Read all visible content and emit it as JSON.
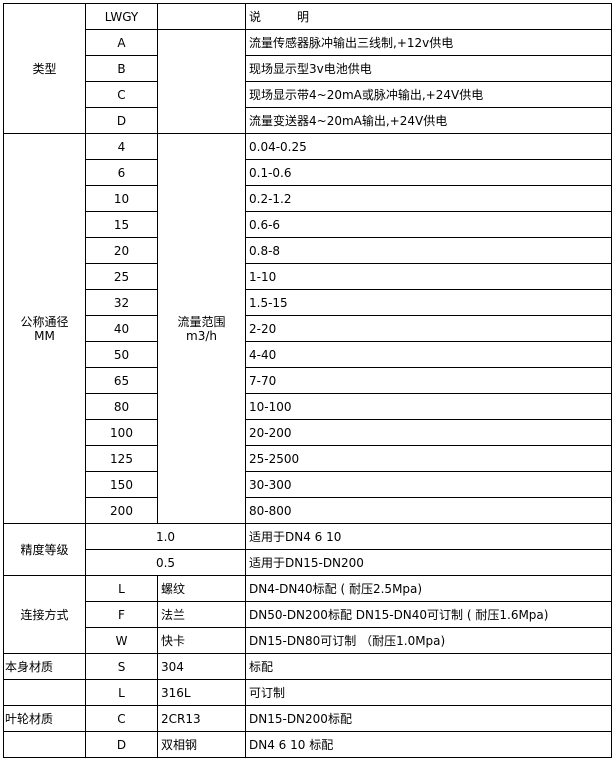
{
  "type_section": {
    "label": "类型",
    "model": "LWGY",
    "desc_header": "说　　　明",
    "rows": [
      {
        "code": "A",
        "desc": "流量传感器脉冲输出三线制,+12v供电"
      },
      {
        "code": "B",
        "desc": "现场显示型3v电池供电"
      },
      {
        "code": "C",
        "desc": "现场显示带4~20mA或脉冲输出,+24V供电"
      },
      {
        "code": "D",
        "desc": "流量变送器4~20mA输出,+24V供电"
      }
    ]
  },
  "diameter_section": {
    "label": "公称通径",
    "unit": "MM",
    "range_label": "流量范围",
    "range_unit": "m3/h",
    "rows": [
      {
        "dn": "4",
        "range": "0.04-0.25"
      },
      {
        "dn": "6",
        "range": "0.1-0.6"
      },
      {
        "dn": "10",
        "range": "0.2-1.2"
      },
      {
        "dn": "15",
        "range": "0.6-6"
      },
      {
        "dn": "20",
        "range": "0.8-8"
      },
      {
        "dn": "25",
        "range": "1-10"
      },
      {
        "dn": "32",
        "range": "1.5-15"
      },
      {
        "dn": "40",
        "range": "2-20"
      },
      {
        "dn": "50",
        "range": "4-40"
      },
      {
        "dn": "65",
        "range": "7-70"
      },
      {
        "dn": "80",
        "range": "10-100"
      },
      {
        "dn": "100",
        "range": "20-200"
      },
      {
        "dn": "125",
        "range": "25-2500"
      },
      {
        "dn": "150",
        "range": "30-300"
      },
      {
        "dn": "200",
        "range": "80-800"
      }
    ]
  },
  "accuracy_section": {
    "label": "精度等级",
    "rows": [
      {
        "grade": "1.0",
        "desc": "适用于DN4  6  10"
      },
      {
        "grade": "0.5",
        "desc": "适用于DN15-DN200"
      }
    ]
  },
  "connection_section": {
    "label": "连接方式",
    "rows": [
      {
        "code": "L",
        "name": "螺纹",
        "desc": "DN4-DN40标配 ( 耐压2.5Mpa)"
      },
      {
        "code": "F",
        "name": "法兰",
        "desc": "DN50-DN200标配 DN15-DN40可订制 ( 耐压1.6Mpa)"
      },
      {
        "code": "W",
        "name": "快卡",
        "desc": "DN15-DN80可订制 （耐压1.0Mpa)"
      }
    ]
  },
  "body_material": {
    "label": "本身材质",
    "rows": [
      {
        "code": "S",
        "name": "304",
        "desc": "标配"
      },
      {
        "code": "L",
        "name": "316L",
        "desc": "可订制"
      }
    ]
  },
  "impeller_material": {
    "label": "叶轮材质",
    "rows": [
      {
        "code": "C",
        "name": "2CR13",
        "desc": "DN15-DN200标配"
      },
      {
        "code": "D",
        "name": "双相钢",
        "desc": "DN4 6 10 标配"
      }
    ]
  }
}
